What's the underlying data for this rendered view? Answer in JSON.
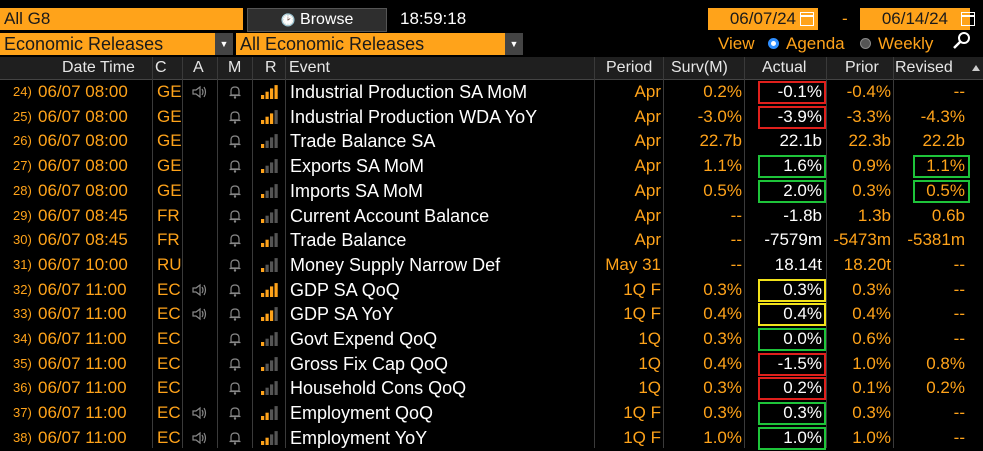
{
  "toolbar": {
    "group": "All G8",
    "browse_label": "Browse",
    "clock": "18:59:18",
    "start_date": "06/07/24",
    "date_sep": "-",
    "end_date": "06/14/24",
    "source": "Economic Releases",
    "filter": "All Economic Releases",
    "view_label": "View",
    "agenda_label": "Agenda",
    "weekly_label": "Weekly",
    "selected_view": "Agenda"
  },
  "columns": {
    "date_time": "Date Time",
    "c": "C",
    "a": "A",
    "m": "M",
    "r": "R",
    "event": "Event",
    "period": "Period",
    "surv": "Surv(M)",
    "actual": "Actual",
    "prior": "Prior",
    "revised": "Revised"
  },
  "colors": {
    "accent": "#ffa31a",
    "highlight_red": "#e0201c",
    "highlight_green": "#1ec43a",
    "highlight_yellow": "#f2e21a"
  },
  "rows": [
    {
      "num": "24)",
      "dt": "06/07 08:00",
      "c": "GE",
      "alert": true,
      "bell": true,
      "rel": 4,
      "event": "Industrial Production SA MoM",
      "period": "Apr",
      "surv": "0.2%",
      "actual": "-0.1%",
      "prior": "-0.4%",
      "revised": "--",
      "box_actual": "red",
      "box_revised": ""
    },
    {
      "num": "25)",
      "dt": "06/07 08:00",
      "c": "GE",
      "alert": false,
      "bell": true,
      "rel": 3,
      "event": "Industrial Production WDA YoY",
      "period": "Apr",
      "surv": "-3.0%",
      "actual": "-3.9%",
      "prior": "-3.3%",
      "revised": "-4.3%",
      "box_actual": "red",
      "box_revised": ""
    },
    {
      "num": "26)",
      "dt": "06/07 08:00",
      "c": "GE",
      "alert": false,
      "bell": true,
      "rel": 1,
      "event": "Trade Balance SA",
      "period": "Apr",
      "surv": "22.7b",
      "actual": "22.1b",
      "prior": "22.3b",
      "revised": "22.2b",
      "box_actual": "",
      "box_revised": ""
    },
    {
      "num": "27)",
      "dt": "06/07 08:00",
      "c": "GE",
      "alert": false,
      "bell": true,
      "rel": 1,
      "event": "Exports SA MoM",
      "period": "Apr",
      "surv": "1.1%",
      "actual": "1.6%",
      "prior": "0.9%",
      "revised": "1.1%",
      "box_actual": "green",
      "box_revised": "green"
    },
    {
      "num": "28)",
      "dt": "06/07 08:00",
      "c": "GE",
      "alert": false,
      "bell": true,
      "rel": 1,
      "event": "Imports SA MoM",
      "period": "Apr",
      "surv": "0.5%",
      "actual": "2.0%",
      "prior": "0.3%",
      "revised": "0.5%",
      "box_actual": "green",
      "box_revised": "green"
    },
    {
      "num": "29)",
      "dt": "06/07 08:45",
      "c": "FR",
      "alert": false,
      "bell": true,
      "rel": 1,
      "event": "Current Account Balance",
      "period": "Apr",
      "surv": "--",
      "actual": "-1.8b",
      "prior": "1.3b",
      "revised": "0.6b",
      "box_actual": "",
      "box_revised": ""
    },
    {
      "num": "30)",
      "dt": "06/07 08:45",
      "c": "FR",
      "alert": false,
      "bell": true,
      "rel": 2,
      "event": "Trade Balance",
      "period": "Apr",
      "surv": "--",
      "actual": "-7579m",
      "prior": "-5473m",
      "revised": "-5381m",
      "box_actual": "",
      "box_revised": ""
    },
    {
      "num": "31)",
      "dt": "06/07 10:00",
      "c": "RU",
      "alert": false,
      "bell": true,
      "rel": 1,
      "event": "Money Supply Narrow Def",
      "period": "May 31",
      "surv": "--",
      "actual": "18.14t",
      "prior": "18.20t",
      "revised": "--",
      "box_actual": "",
      "box_revised": ""
    },
    {
      "num": "32)",
      "dt": "06/07 11:00",
      "c": "EC",
      "alert": true,
      "bell": true,
      "rel": 4,
      "event": "GDP SA QoQ",
      "period": "1Q F",
      "surv": "0.3%",
      "actual": "0.3%",
      "prior": "0.3%",
      "revised": "--",
      "box_actual": "yellow",
      "box_revised": ""
    },
    {
      "num": "33)",
      "dt": "06/07 11:00",
      "c": "EC",
      "alert": true,
      "bell": true,
      "rel": 3,
      "event": "GDP SA YoY",
      "period": "1Q F",
      "surv": "0.4%",
      "actual": "0.4%",
      "prior": "0.4%",
      "revised": "--",
      "box_actual": "yellow",
      "box_revised": ""
    },
    {
      "num": "34)",
      "dt": "06/07 11:00",
      "c": "EC",
      "alert": false,
      "bell": true,
      "rel": 1,
      "event": "Govt Expend QoQ",
      "period": "1Q",
      "surv": "0.3%",
      "actual": "0.0%",
      "prior": "0.6%",
      "revised": "--",
      "box_actual": "green",
      "box_revised": ""
    },
    {
      "num": "35)",
      "dt": "06/07 11:00",
      "c": "EC",
      "alert": false,
      "bell": true,
      "rel": 1,
      "event": "Gross Fix Cap QoQ",
      "period": "1Q",
      "surv": "0.4%",
      "actual": "-1.5%",
      "prior": "1.0%",
      "revised": "0.8%",
      "box_actual": "red",
      "box_revised": ""
    },
    {
      "num": "36)",
      "dt": "06/07 11:00",
      "c": "EC",
      "alert": false,
      "bell": true,
      "rel": 1,
      "event": "Household Cons QoQ",
      "period": "1Q",
      "surv": "0.3%",
      "actual": "0.2%",
      "prior": "0.1%",
      "revised": "0.2%",
      "box_actual": "red",
      "box_revised": ""
    },
    {
      "num": "37)",
      "dt": "06/07 11:00",
      "c": "EC",
      "alert": true,
      "bell": true,
      "rel": 2,
      "event": "Employment QoQ",
      "period": "1Q F",
      "surv": "0.3%",
      "actual": "0.3%",
      "prior": "0.3%",
      "revised": "--",
      "box_actual": "green",
      "box_revised": ""
    },
    {
      "num": "38)",
      "dt": "06/07 11:00",
      "c": "EC",
      "alert": true,
      "bell": true,
      "rel": 2,
      "event": "Employment YoY",
      "period": "1Q F",
      "surv": "1.0%",
      "actual": "1.0%",
      "prior": "1.0%",
      "revised": "--",
      "box_actual": "green",
      "box_revised": ""
    }
  ]
}
